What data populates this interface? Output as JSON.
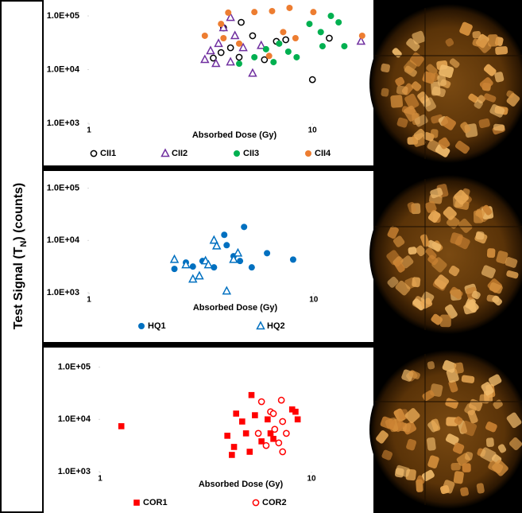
{
  "ylabel": [
    "Test Signal (T",
    "N",
    ") (counts)"
  ],
  "chart_data": [
    {
      "type": "scatter",
      "xlabel": "Absorbed Dose (Gy)",
      "xlog": true,
      "ylog": true,
      "grid": false,
      "xlim": [
        1,
        17
      ],
      "xticks": [
        1,
        10
      ],
      "ylim": [
        1000,
        167000
      ],
      "yticks": [
        {
          "value": 1000,
          "label": "1.0E+03"
        },
        {
          "value": 10000,
          "label": "1.0E+04"
        },
        {
          "value": 100000,
          "label": "1.0E+05"
        }
      ],
      "legend": "bottom",
      "series": [
        {
          "name": "CII1",
          "color": "#000000",
          "marker": "circle-open",
          "x": [
            3.6,
            4.0,
            4.8,
            5.4,
            4.7,
            6.1,
            6.9,
            7.6,
            10,
            11.9,
            3.9,
            4.3
          ],
          "values": [
            16400,
            60000,
            76000,
            42700,
            17000,
            15300,
            33600,
            36000,
            6500,
            38500,
            20800,
            25500
          ]
        },
        {
          "name": "CII2",
          "color": "#7030a0",
          "marker": "triangle-open",
          "x": [
            4.3,
            3.3,
            3.7,
            3.5,
            4.3,
            5.4,
            4.9,
            4.5,
            5.9,
            16.5,
            4.0,
            3.8
          ],
          "values": [
            93000,
            15300,
            12900,
            22300,
            13800,
            8500,
            25500,
            42700,
            28000,
            33600,
            60000,
            30500
          ]
        },
        {
          "name": "CII3",
          "color": "#00b050",
          "marker": "circle",
          "x": [
            4.7,
            5.5,
            6.2,
            7.1,
            7.8,
            9.7,
            10.9,
            12.1,
            13.1,
            13.9,
            11.1,
            6.7,
            8.5
          ],
          "values": [
            12900,
            17000,
            24000,
            30500,
            21600,
            71000,
            50000,
            100000,
            76000,
            27300,
            27300,
            13800,
            17000
          ]
        },
        {
          "name": "CII4",
          "color": "#ed7d31",
          "marker": "circle",
          "x": [
            3.3,
            4.2,
            5.5,
            6.6,
            7.9,
            10.1,
            4.0,
            4.7,
            6.4,
            7.4,
            8.4,
            16.7,
            3.9
          ],
          "values": [
            42700,
            115000,
            118000,
            123000,
            141000,
            118000,
            38500,
            30500,
            18000,
            50000,
            38500,
            42700,
            71000
          ]
        }
      ]
    },
    {
      "type": "scatter",
      "xlabel": "Absorbed Dose (Gy)",
      "xlog": true,
      "ylog": true,
      "grid": false,
      "xlim": [
        1,
        17
      ],
      "xticks": [
        1,
        10
      ],
      "ylim": [
        1000,
        150000
      ],
      "yticks": [
        {
          "value": 1000,
          "label": "1.0E+03"
        },
        {
          "value": 10000,
          "label": "1.0E+04"
        },
        {
          "value": 100000,
          "label": "1.0E+05"
        }
      ],
      "legend": "bottom",
      "series": [
        {
          "name": "HQ1",
          "color": "#0070c0",
          "marker": "circle",
          "x": [
            2.4,
            2.7,
            2.9,
            3.2,
            3.6,
            4.0,
            4.1,
            4.4,
            4.7,
            4.9,
            5.3,
            6.2,
            8.1
          ],
          "values": [
            2850,
            3770,
            3160,
            4040,
            3050,
            12800,
            8100,
            5000,
            4040,
            18100,
            3050,
            5700,
            4300
          ]
        },
        {
          "name": "HQ2",
          "color": "#0070c0",
          "marker": "triangle-open",
          "x": [
            2.4,
            2.7,
            2.9,
            3.1,
            3.3,
            3.4,
            3.6,
            3.7,
            4.1,
            4.4,
            4.6
          ],
          "values": [
            4300,
            3400,
            1810,
            2080,
            4040,
            3400,
            10000,
            7800,
            1070,
            4300,
            5700
          ]
        }
      ]
    },
    {
      "type": "scatter",
      "xlabel": "Absorbed Dose (Gy)",
      "xlog": true,
      "ylog": true,
      "grid": false,
      "xlim": [
        1,
        18
      ],
      "xticks": [
        1,
        10
      ],
      "ylim": [
        1000,
        150000
      ],
      "yticks": [
        {
          "value": 1000,
          "label": "1.0E+03"
        },
        {
          "value": 10000,
          "label": "1.0E+04"
        },
        {
          "value": 100000,
          "label": "1.0E+05"
        }
      ],
      "legend": "bottom",
      "series": [
        {
          "name": "COR1",
          "color": "#ff0000",
          "marker": "square",
          "x": [
            1.26,
            4.0,
            4.2,
            4.3,
            4.4,
            4.7,
            4.9,
            5.2,
            5.4,
            5.8,
            6.2,
            6.4,
            6.6,
            5.1,
            8.1,
            8.6,
            8.4
          ],
          "values": [
            7400,
            4860,
            2090,
            2970,
            12900,
            9100,
            5400,
            29200,
            12000,
            3800,
            10000,
            5400,
            4240,
            2400,
            15500,
            10000,
            14000
          ]
        },
        {
          "name": "COR2",
          "color": "#ff0000",
          "marker": "circle-open",
          "x": [
            5.8,
            6.4,
            6.7,
            7.0,
            7.3,
            7.2,
            6.6,
            6.1,
            5.6,
            7.3,
            7.6
          ],
          "values": [
            21800,
            14000,
            6460,
            3550,
            2400,
            23300,
            12900,
            3160,
            5400,
            9100,
            5400
          ]
        }
      ]
    }
  ]
}
